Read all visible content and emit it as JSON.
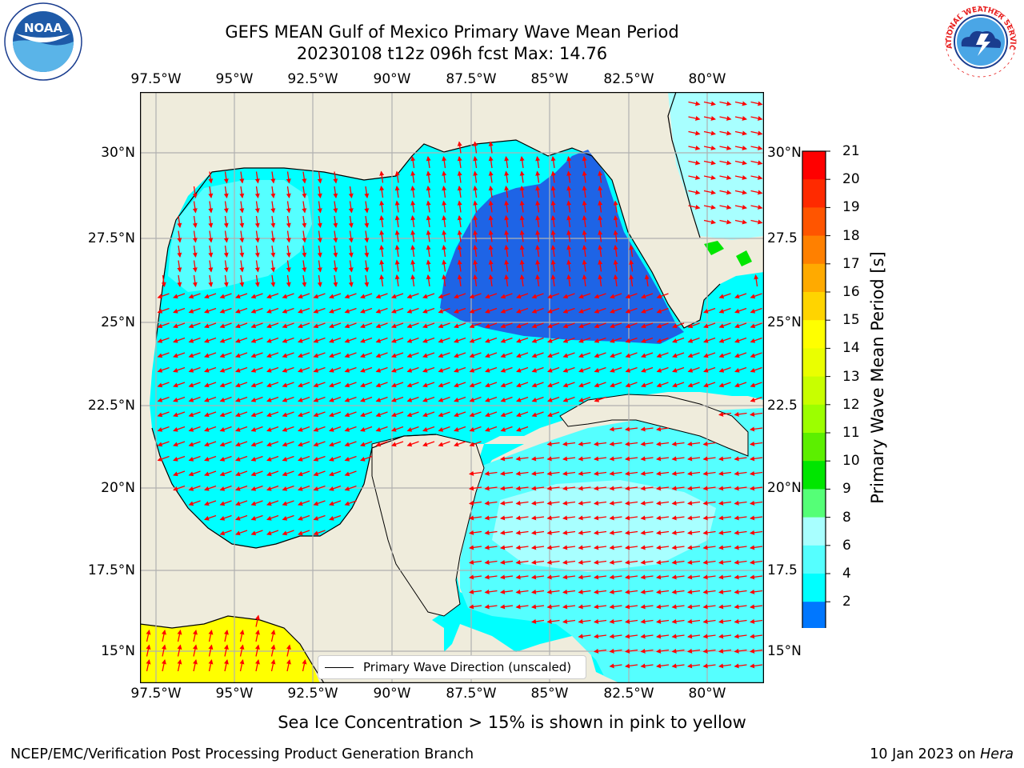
{
  "title": {
    "line1": "GEFS MEAN Gulf of Mexico Primary Wave Mean Period",
    "line2": "20230108 t12z 096h fcst   Max: 14.76"
  },
  "logos": {
    "left": {
      "icon": "noaa-logo-icon",
      "text": "NOAA"
    },
    "right": {
      "icon": "nws-logo-icon",
      "text": "NATIONAL WEATHER SERVICE"
    }
  },
  "axes": {
    "lon_ticks": [
      "97.5°W",
      "95°W",
      "92.5°W",
      "90°W",
      "87.5°W",
      "85°W",
      "82.5°W",
      "80°W"
    ],
    "lat_ticks": [
      "30°N",
      "27.5°N",
      "25°N",
      "22.5°N",
      "20°N",
      "17.5°N",
      "15°N"
    ],
    "lat_ticks_right": [
      "30°N",
      "27.5",
      "25°N",
      "22.5",
      "20°N",
      "17.5",
      "15°N"
    ]
  },
  "colorbar": {
    "title": "Primary Wave Mean Period [s]",
    "labels": [
      "21",
      "20",
      "19",
      "18",
      "17",
      "16",
      "15",
      "14",
      "13",
      "12",
      "11",
      "10",
      "9",
      "8",
      "6",
      "4",
      "2"
    ],
    "colors": [
      "#ff0000",
      "#ff2a00",
      "#ff5500",
      "#ff8000",
      "#ffaa00",
      "#ffd400",
      "#ffff00",
      "#eaff00",
      "#c8ff00",
      "#9cff00",
      "#5cef00",
      "#00e600",
      "#55ff77",
      "#a8ffff",
      "#55ffff",
      "#00ffff",
      "#0077ff"
    ],
    "under_color": "#0000ee"
  },
  "legend": {
    "label": "Primary Wave Direction (unscaled)"
  },
  "map_colors": {
    "land": "#efecdc",
    "dark_blue": "#1e64e6",
    "cyan": "#00ffff",
    "light_cyan": "#55ffff",
    "pale_cyan": "#a8ffff",
    "green": "#00e600",
    "yellow": "#ffff00",
    "arrow": "#ff0000"
  },
  "note": "Sea Ice Concentration > 15% is shown in pink to yellow",
  "footer": {
    "left": "NCEP/EMC/Verification Post Processing Product Generation Branch",
    "date": "10 Jan 2023 on",
    "machine": "Hera"
  }
}
